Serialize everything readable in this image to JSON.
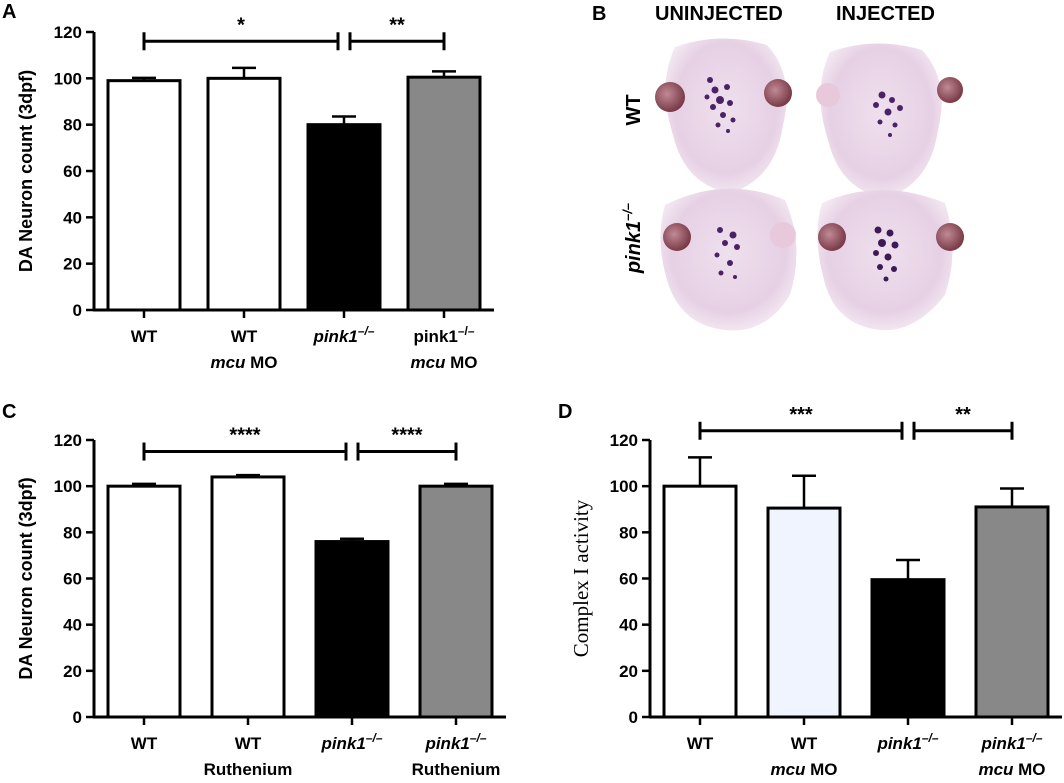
{
  "chart_data": [
    {
      "panel": "A",
      "type": "bar",
      "ylabel": "DA Neuron count (3dpf)",
      "ylim": [
        0,
        120
      ],
      "yticks": [
        0,
        20,
        40,
        60,
        80,
        100,
        120
      ],
      "categories": [
        {
          "lines": [
            {
              "text": "WT"
            }
          ]
        },
        {
          "lines": [
            {
              "text": "WT"
            },
            {
              "text": "mcu",
              "suffix": " MO"
            }
          ]
        },
        {
          "lines": [
            {
              "text": "pink1",
              "sup": "–/–",
              "italic": true
            }
          ]
        },
        {
          "lines": [
            {
              "text": "pink1",
              "sup": "–/–"
            },
            {
              "text": "mcu",
              "suffix": " MO"
            }
          ]
        }
      ],
      "values": [
        99,
        100,
        80,
        100.5
      ],
      "errors": [
        1.2,
        4.5,
        3.5,
        2.5
      ],
      "colors": [
        "#ffffff",
        "#ffffff",
        "#000000",
        "#888888"
      ],
      "significance": [
        {
          "from": 0,
          "to": 2,
          "label": "*",
          "y": 116
        },
        {
          "from": 2,
          "to": 3,
          "label": "**",
          "y": 116
        }
      ]
    },
    {
      "panel": "C",
      "type": "bar",
      "ylabel": "DA Neuron count (3dpf)",
      "ylim": [
        0,
        120
      ],
      "yticks": [
        0,
        20,
        40,
        60,
        80,
        100,
        120
      ],
      "categories": [
        {
          "lines": [
            {
              "text": "WT"
            }
          ]
        },
        {
          "lines": [
            {
              "text": "WT"
            },
            {
              "text": "Ruthenium"
            }
          ]
        },
        {
          "lines": [
            {
              "text": "pink1",
              "sup": "–/–",
              "italic": true
            }
          ]
        },
        {
          "lines": [
            {
              "text": "pink1",
              "sup": "–/–",
              "italic": true
            },
            {
              "text": "Ruthenium"
            }
          ]
        }
      ],
      "values": [
        100,
        104,
        76,
        100
      ],
      "errors": [
        1.0,
        0.8,
        1.2,
        1.0
      ],
      "colors": [
        "#ffffff",
        "#ffffff",
        "#000000",
        "#888888"
      ],
      "significance": [
        {
          "from": 0,
          "to": 2,
          "label": "****",
          "y": 115
        },
        {
          "from": 2,
          "to": 3,
          "label": "****",
          "y": 115
        }
      ]
    },
    {
      "panel": "D",
      "type": "bar",
      "ylabel": "Complex I activity",
      "ylim": [
        0,
        120
      ],
      "yticks": [
        0,
        20,
        40,
        60,
        80,
        100,
        120
      ],
      "categories": [
        {
          "lines": [
            {
              "text": "WT"
            }
          ]
        },
        {
          "lines": [
            {
              "text": "WT"
            },
            {
              "text": "mcu",
              "suffix": " MO"
            }
          ]
        },
        {
          "lines": [
            {
              "text": "pink1",
              "sup": "–/–",
              "italic": true
            }
          ]
        },
        {
          "lines": [
            {
              "text": "pink1",
              "sup": "–/–",
              "italic": true
            },
            {
              "text": "mcu",
              "suffix": " MO"
            }
          ]
        }
      ],
      "values": [
        100,
        90.5,
        59.5,
        91
      ],
      "errors": [
        12.5,
        14,
        8.5,
        8
      ],
      "colors": [
        "#ffffff",
        "#f0f4ff",
        "#000000",
        "#888888"
      ],
      "significance": [
        {
          "from": 0,
          "to": 2,
          "label": "***",
          "y": 124
        },
        {
          "from": 2,
          "to": 3,
          "label": "**",
          "y": 124
        }
      ]
    }
  ],
  "panels": {
    "a": "A",
    "b": "B",
    "c": "C",
    "d": "D"
  },
  "image_panel": {
    "columns": [
      "UNINJECTED",
      "INJECTED"
    ],
    "rows": [
      {
        "text": "WT"
      },
      {
        "text": "pink1",
        "sup": "–/–"
      }
    ]
  }
}
